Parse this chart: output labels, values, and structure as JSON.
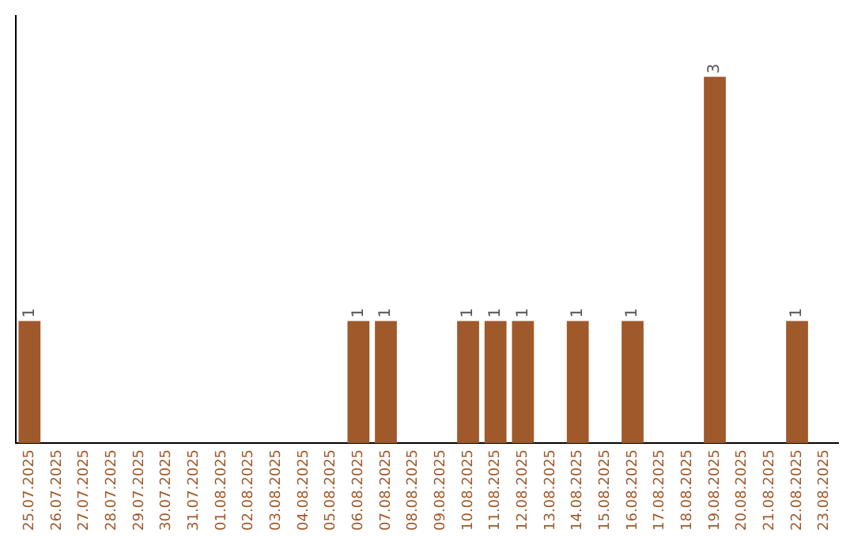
{
  "chart_data": {
    "type": "bar",
    "categories": [
      "25.07.2025",
      "26.07.2025",
      "27.07.2025",
      "28.07.2025",
      "29.07.2025",
      "30.07.2025",
      "31.07.2025",
      "01.08.2025",
      "02.08.2025",
      "03.08.2025",
      "04.08.2025",
      "05.08.2025",
      "06.08.2025",
      "07.08.2025",
      "08.08.2025",
      "09.08.2025",
      "10.08.2025",
      "11.08.2025",
      "12.08.2025",
      "13.08.2025",
      "14.08.2025",
      "15.08.2025",
      "16.08.2025",
      "17.08.2025",
      "18.08.2025",
      "19.08.2025",
      "20.08.2025",
      "21.08.2025",
      "22.08.2025",
      "23.08.2025"
    ],
    "values": [
      1,
      0,
      0,
      0,
      0,
      0,
      0,
      0,
      0,
      0,
      0,
      0,
      1,
      1,
      0,
      0,
      1,
      1,
      1,
      0,
      1,
      0,
      1,
      0,
      0,
      3,
      0,
      0,
      1,
      0
    ],
    "value_labels": [
      "1",
      null,
      null,
      null,
      null,
      null,
      null,
      null,
      null,
      null,
      null,
      null,
      "1",
      "1",
      null,
      null,
      "1",
      "1",
      "1",
      null,
      "1",
      null,
      "1",
      null,
      null,
      "3",
      null,
      null,
      "1",
      null
    ],
    "color": "#a0592b",
    "grid": false,
    "legend": false,
    "tick_labels": "x"
  }
}
